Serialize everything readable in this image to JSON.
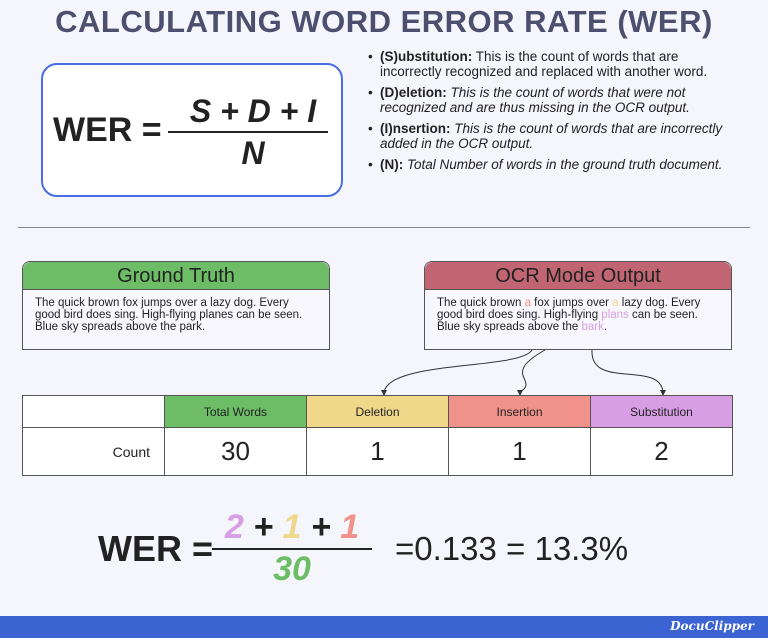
{
  "title": "CALCULATING WORD ERROR RATE (WER)",
  "formula": {
    "lhs": "WER =",
    "numerator": "S + D + I",
    "denominator": "N"
  },
  "definitions": [
    {
      "term": "(S)ubstitution:",
      "text": " This is the count of words that are incorrectly recognized and replaced with another word."
    },
    {
      "term": "(D)eletion:",
      "text": " This is the count of words that were not recognized and are thus missing in the OCR output."
    },
    {
      "term": "(I)nsertion:",
      "text": " This is the count of words that are incorrectly added in the OCR output."
    },
    {
      "term": "(N):",
      "text": " Total Number of words in the ground truth document."
    }
  ],
  "ground_truth": {
    "header": "Ground Truth",
    "text": "The quick brown fox jumps over a lazy dog. Every good bird does sing. High-flying planes can be seen. Blue sky spreads above the park.",
    "color": "#6cbd66"
  },
  "ocr_output": {
    "header": "OCR Mode Output",
    "color": "#c06571",
    "parts": [
      "The quick brown ",
      "a",
      " fox jumps over ",
      "a",
      " lazy dog. Every good bird does sing. High-flying ",
      "plans",
      " can be seen. Blue sky spreads above the ",
      "bark",
      "."
    ]
  },
  "table": {
    "headers": [
      "",
      "Total Words",
      "Deletion",
      "Insertion",
      "Substitution"
    ],
    "header_colors": [
      "#ffffff",
      "#6cbd66",
      "#efd88a",
      "#f0928a",
      "#d89ee4"
    ],
    "row_label": "Count",
    "values": [
      "30",
      "1",
      "1",
      "2"
    ]
  },
  "result": {
    "lhs": "WER =",
    "n1": "2",
    "plus1": " + ",
    "n2": "1",
    "plus2": " + ",
    "n3": "1",
    "den": "30",
    "rhs": "=0.133 = 13.3%"
  },
  "footer": {
    "logo": "DocuClipper",
    "color": "#3b63d2"
  }
}
